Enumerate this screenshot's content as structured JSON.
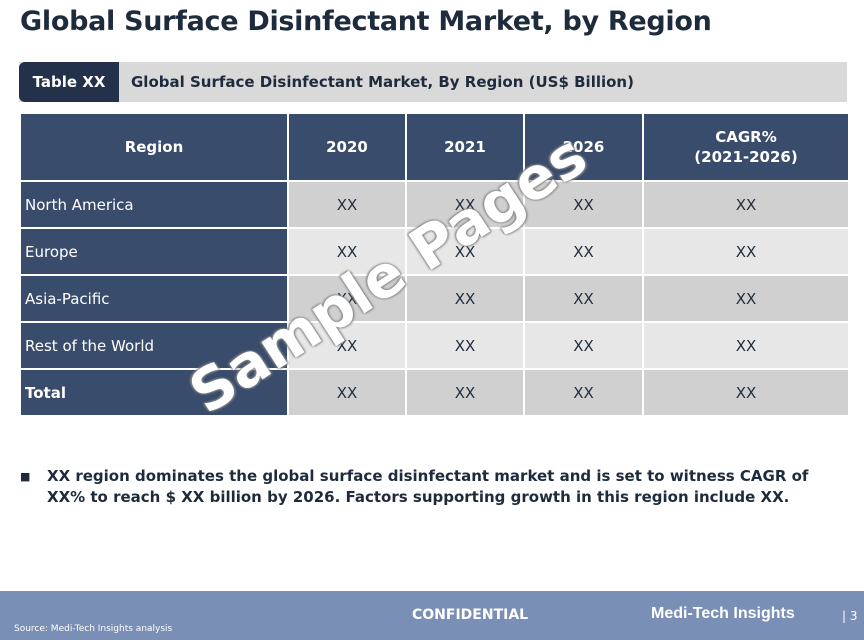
{
  "title": "Global Surface Disinfectant Market, by Region",
  "caption": {
    "tag": "Table XX",
    "text": "Global Surface Disinfectant Market, By Region (US$ Billion)"
  },
  "table": {
    "headers": [
      "Region",
      "2020",
      "2021",
      "2026",
      "CAGR%\n(2021-2026)"
    ],
    "rows": [
      {
        "region": "North America",
        "values": [
          "XX",
          "XX",
          "XX",
          "XX"
        ]
      },
      {
        "region": "Europe",
        "values": [
          "XX",
          "XX",
          "XX",
          "XX"
        ]
      },
      {
        "region": "Asia-Pacific",
        "values": [
          "XX",
          "XX",
          "XX",
          "XX"
        ]
      },
      {
        "region": "Rest of the World",
        "values": [
          "XX",
          "XX",
          "XX",
          "XX"
        ]
      },
      {
        "region": "Total",
        "values": [
          "XX",
          "XX",
          "XX",
          "XX"
        ]
      }
    ]
  },
  "watermark": "Sample Pages",
  "bullet": "XX region dominates the global surface disinfectant market and is set to witness CAGR of XX% to reach $ XX billion by 2026. Factors supporting growth in this region include XX.",
  "footer": {
    "source": "Source: Medi-Tech Insights analysis",
    "confidential": "CONFIDENTIAL",
    "brand": "Medi-Tech Insights",
    "page": "| 3"
  },
  "colors": {
    "header_bg": "#3a4c6c",
    "tag_bg": "#24314a",
    "footer_bg": "#7a8fb5",
    "row_odd": "#d0d0d0",
    "row_even": "#e7e7e7"
  }
}
